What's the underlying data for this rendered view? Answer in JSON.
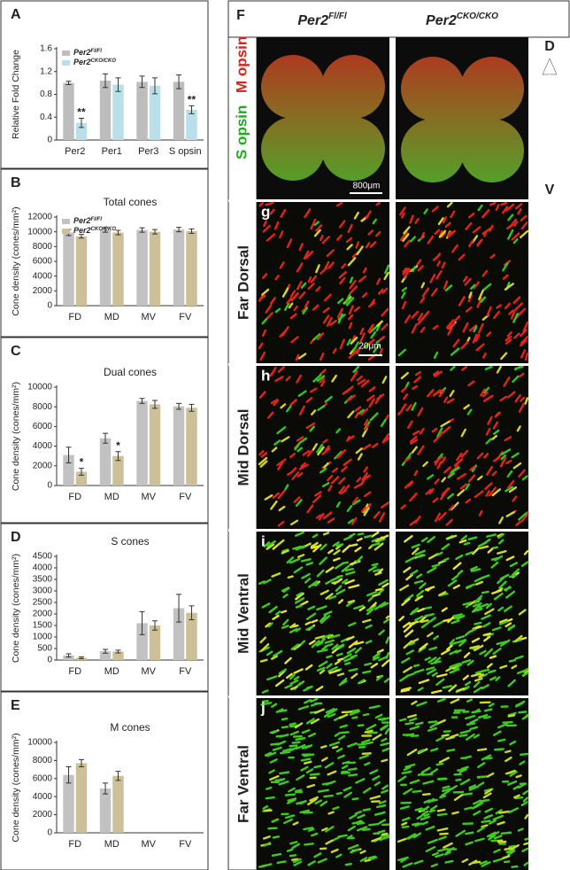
{
  "chart_data": [
    {
      "type": "bar",
      "panel": "A",
      "ylabel": "Relative Fold Change",
      "categories": [
        "Per2",
        "Per1",
        "Per3",
        "S opsin"
      ],
      "series": [
        {
          "name": "Per2Fl/Fl",
          "color": "#bdbdbd",
          "values": [
            1.0,
            1.04,
            1.02,
            1.02
          ],
          "errors": [
            0.03,
            0.12,
            0.1,
            0.12
          ]
        },
        {
          "name": "Per2CKO/CKO",
          "color": "#b9dfe8",
          "values": [
            0.3,
            0.97,
            0.95,
            0.53
          ],
          "errors": [
            0.08,
            0.12,
            0.14,
            0.07
          ]
        }
      ],
      "ylim": [
        0,
        1.6
      ],
      "yticks": [
        0,
        0.4,
        0.8,
        1.2,
        1.6
      ],
      "legend": "top-left",
      "annotations": [
        {
          "text": "**",
          "series": 1,
          "category": 0
        },
        {
          "text": "**",
          "series": 1,
          "category": 3
        }
      ]
    },
    {
      "type": "bar",
      "panel": "B",
      "title": "Total cones",
      "ylabel": "Cone density (cones/mm²)",
      "categories": [
        "FD",
        "MD",
        "MV",
        "FV"
      ],
      "series": [
        {
          "name": "Per2Fl/Fl",
          "color": "#c2c2c2",
          "values": [
            9900,
            10250,
            10250,
            10300
          ],
          "errors": [
            400,
            300,
            300,
            300
          ]
        },
        {
          "name": "Per2CKO/CKO",
          "color": "#cdbf98",
          "values": [
            9400,
            9900,
            10000,
            10100
          ],
          "errors": [
            250,
            300,
            300,
            300
          ]
        }
      ],
      "ylim": [
        0,
        12000
      ],
      "yticks": [
        0,
        2000,
        4000,
        6000,
        8000,
        10000,
        12000
      ],
      "legend": "top-left"
    },
    {
      "type": "bar",
      "panel": "C",
      "title": "Dual cones",
      "ylabel": "Cone density (cones/mm²)",
      "categories": [
        "FD",
        "MD",
        "MV",
        "FV"
      ],
      "series": [
        {
          "name": "Per2Fl/Fl",
          "color": "#c2c2c2",
          "values": [
            3100,
            4800,
            8600,
            8050
          ],
          "errors": [
            800,
            500,
            250,
            300
          ]
        },
        {
          "name": "Per2CKO/CKO",
          "color": "#cdbf98",
          "values": [
            1400,
            3000,
            8250,
            7900
          ],
          "errors": [
            350,
            450,
            400,
            350
          ]
        }
      ],
      "ylim": [
        0,
        10000
      ],
      "yticks": [
        0,
        2000,
        4000,
        6000,
        8000,
        10000
      ],
      "annotations": [
        {
          "text": "*",
          "series": 1,
          "category": 0
        },
        {
          "text": "*",
          "series": 1,
          "category": 1
        }
      ]
    },
    {
      "type": "bar",
      "panel": "D",
      "title": "S cones",
      "ylabel": "Cone density (cones/mm²)",
      "categories": [
        "FD",
        "MD",
        "MV",
        "FV"
      ],
      "series": [
        {
          "name": "Per2Fl/Fl",
          "color": "#c2c2c2",
          "values": [
            200,
            380,
            1600,
            2250
          ],
          "errors": [
            70,
            80,
            500,
            600
          ]
        },
        {
          "name": "Per2CKO/CKO",
          "color": "#cdbf98",
          "values": [
            100,
            370,
            1500,
            2050
          ],
          "errors": [
            40,
            60,
            200,
            300
          ]
        }
      ],
      "ylim": [
        0,
        4500
      ],
      "yticks": [
        0,
        500,
        1000,
        1500,
        2000,
        2500,
        3000,
        3500,
        4000,
        4500
      ]
    },
    {
      "type": "bar",
      "panel": "E",
      "title": "M cones",
      "ylabel": "Cone density (cones/mm²)",
      "categories": [
        "FD",
        "MD",
        "MV",
        "FV"
      ],
      "series": [
        {
          "name": "Per2Fl/Fl",
          "color": "#c2c2c2",
          "values": [
            6400,
            4900,
            null,
            null
          ],
          "errors": [
            900,
            600,
            null,
            null
          ]
        },
        {
          "name": "Per2CKO/CKO",
          "color": "#cdbf98",
          "values": [
            7700,
            6300,
            null,
            null
          ],
          "errors": [
            400,
            500,
            null,
            null
          ]
        }
      ],
      "ylim": [
        0,
        10000
      ],
      "yticks": [
        0,
        2000,
        4000,
        6000,
        8000,
        10000
      ]
    }
  ],
  "figure": {
    "panel": "F",
    "column_headers": [
      "Per2Fl/Fl",
      "Per2CKO/CKO"
    ],
    "stains": [
      "M opsin",
      "S opsin"
    ],
    "orientation": [
      "D",
      "V"
    ],
    "scale_bars": [
      "800μm",
      "20μm"
    ],
    "rows": [
      {
        "letter": "g",
        "label": "Far Dorsal"
      },
      {
        "letter": "h",
        "label": "Mid Dorsal"
      },
      {
        "letter": "i",
        "label": "Mid Ventral"
      },
      {
        "letter": "j",
        "label": "Far Ventral"
      }
    ]
  }
}
